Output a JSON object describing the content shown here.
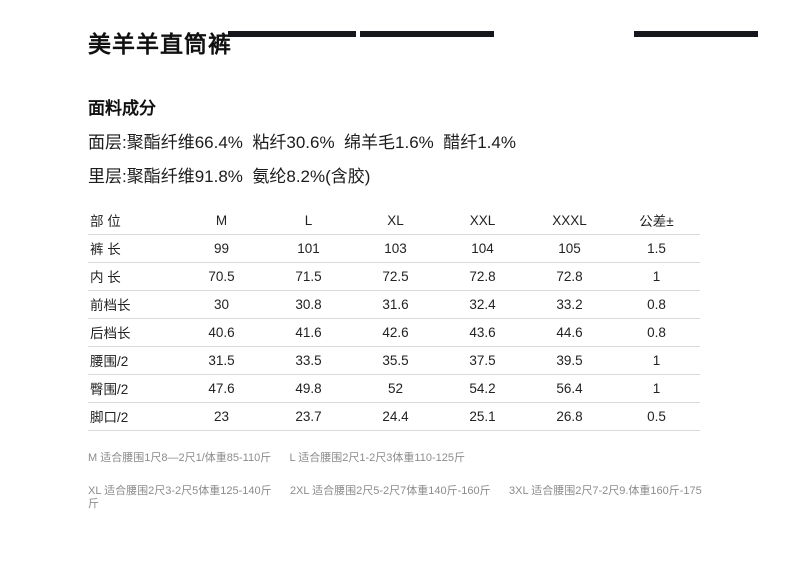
{
  "product": {
    "title": "美羊羊直筒裤"
  },
  "fabric": {
    "heading": "面料成分",
    "outer_layer": "面层:聚酯纤维66.4%  粘纤30.6%  绵羊毛1.6%  醋纤1.4%",
    "inner_layer": "里层:聚酯纤维91.8%  氨纶8.2%(含胶)"
  },
  "size_table": {
    "headers": [
      "部 位",
      "M",
      "L",
      "XL",
      "XXL",
      "XXXL",
      "公差±"
    ],
    "rows": [
      [
        "裤 长",
        "99",
        "101",
        "103",
        "104",
        "105",
        "1.5"
      ],
      [
        "内 长",
        "70.5",
        "71.5",
        "72.5",
        "72.8",
        "72.8",
        "1"
      ],
      [
        "前档长",
        "30",
        "30.8",
        "31.6",
        "32.4",
        "33.2",
        "0.8"
      ],
      [
        "后档长",
        "40.6",
        "41.6",
        "42.6",
        "43.6",
        "44.6",
        "0.8"
      ],
      [
        "腰围/2",
        "31.5",
        "33.5",
        "35.5",
        "37.5",
        "39.5",
        "1"
      ],
      [
        "臀围/2",
        "47.6",
        "49.8",
        "52",
        "54.2",
        "56.4",
        "1"
      ],
      [
        "脚口/2",
        "23",
        "23.7",
        "24.4",
        "25.1",
        "26.8",
        "0.5"
      ]
    ]
  },
  "notes": {
    "line1": "M 适合腰围1尺8—2尺1/体重85-110斤      L 适合腰围2尺1-2尺3体重110-125斤",
    "line2": "XL 适合腰围2尺3-2尺5体重125-140斤      2XL 适合腰围2尺5-2尺7体重140斤-160斤      3XL 适合腰围2尺7-2尺9.体重160斤-175斤"
  },
  "colors": {
    "text": "#222222",
    "muted": "#8c8c8c",
    "table_border": "#d9d9d9",
    "top_strip": "#15171d"
  }
}
